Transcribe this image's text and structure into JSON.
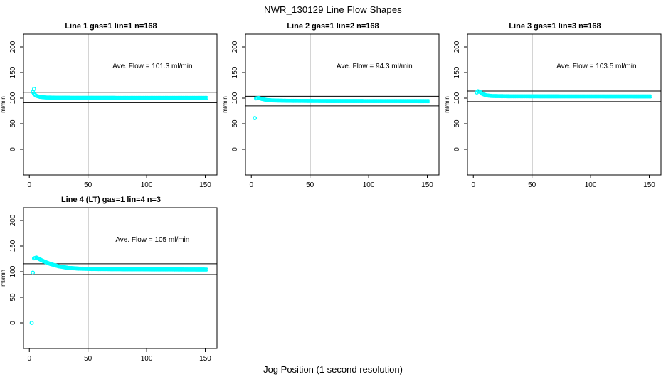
{
  "figure": {
    "title": "NWR_130129  Line Flow Shapes",
    "xlabel": "Jog Position (1 second resolution)",
    "background": "#FFFFFF",
    "point_color": "#00FFFF",
    "line_color": "#000000",
    "text_color": "#000000"
  },
  "chart_data": [
    {
      "type": "scatter",
      "title": "Line 1 gas=1 lin=1 n=168",
      "annotation": "Ave. Flow =  101.3  ml/min",
      "ave_flow_ml_min": 101.3,
      "gas": 1,
      "lin": 1,
      "n": 168,
      "ylabel": "ml/min",
      "xticks": [
        0,
        50,
        100,
        150
      ],
      "yticks": [
        0,
        50,
        100,
        150,
        200
      ],
      "xlim": [
        -5,
        160
      ],
      "ylim": [
        -50,
        225
      ],
      "vline_x": 50,
      "hlines_y": [
        111.4,
        91.2
      ],
      "annotation_pos": [
        105,
        158
      ],
      "trend": [
        [
          3,
          112
        ],
        [
          4,
          108
        ],
        [
          6,
          104.5
        ],
        [
          9,
          102.5
        ],
        [
          14,
          101.3
        ],
        [
          25,
          100.8
        ],
        [
          60,
          100.6
        ],
        [
          110,
          100.5
        ],
        [
          151,
          100.4
        ]
      ],
      "outliers": [
        [
          4,
          118
        ]
      ]
    },
    {
      "type": "scatter",
      "title": "Line 2 gas=1 lin=2 n=168",
      "annotation": "Ave. Flow =  94.3  ml/min",
      "ave_flow_ml_min": 94.3,
      "gas": 1,
      "lin": 2,
      "n": 168,
      "ylabel": "ml/min",
      "xticks": [
        0,
        50,
        100,
        150
      ],
      "yticks": [
        0,
        50,
        100,
        150,
        200
      ],
      "xlim": [
        -5,
        160
      ],
      "ylim": [
        -50,
        225
      ],
      "vline_x": 50,
      "hlines_y": [
        103.7,
        84.9
      ],
      "annotation_pos": [
        105,
        158
      ],
      "trend": [
        [
          4,
          99.5
        ],
        [
          6,
          100.5
        ],
        [
          9,
          98.5
        ],
        [
          13,
          96.5
        ],
        [
          18,
          95.5
        ],
        [
          30,
          94.8
        ],
        [
          60,
          94.4
        ],
        [
          151,
          94.2
        ]
      ],
      "outliers": [
        [
          3,
          61
        ]
      ]
    },
    {
      "type": "scatter",
      "title": "Line 3 gas=1 lin=3 n=168",
      "annotation": "Ave. Flow =  103.5  ml/min",
      "ave_flow_ml_min": 103.5,
      "gas": 1,
      "lin": 3,
      "n": 168,
      "ylabel": "ml/min",
      "xticks": [
        0,
        50,
        100,
        150
      ],
      "yticks": [
        0,
        50,
        100,
        150,
        200
      ],
      "xlim": [
        -5,
        160
      ],
      "ylim": [
        -50,
        225
      ],
      "vline_x": 50,
      "hlines_y": [
        113.9,
        93.2
      ],
      "annotation_pos": [
        105,
        158
      ],
      "trend": [
        [
          3,
          111
        ],
        [
          4,
          113.5
        ],
        [
          6,
          112
        ],
        [
          8,
          108
        ],
        [
          11,
          105.5
        ],
        [
          16,
          104.2
        ],
        [
          30,
          103.7
        ],
        [
          80,
          103.5
        ],
        [
          151,
          103.4
        ]
      ],
      "outliers": []
    },
    {
      "type": "scatter",
      "title": "Line 4 (LT) gas=1 lin=4 n=3",
      "annotation": "Ave. Flow =  105  ml/min",
      "ave_flow_ml_min": 105,
      "gas": 1,
      "lin": 4,
      "n": 3,
      "ylabel": "ml/min",
      "xticks": [
        0,
        50,
        100,
        150
      ],
      "yticks": [
        0,
        50,
        100,
        150,
        200
      ],
      "xlim": [
        -5,
        160
      ],
      "ylim": [
        -50,
        225
      ],
      "vline_x": 50,
      "hlines_y": [
        115.5,
        94.5
      ],
      "annotation_pos": [
        105,
        158
      ],
      "trend": [
        [
          4,
          126
        ],
        [
          6,
          127.5
        ],
        [
          9,
          124
        ],
        [
          13,
          119.5
        ],
        [
          18,
          115
        ],
        [
          25,
          110.5
        ],
        [
          33,
          107.5
        ],
        [
          42,
          106
        ],
        [
          55,
          105.2
        ],
        [
          80,
          104.8
        ],
        [
          120,
          104.5
        ],
        [
          151,
          104.2
        ]
      ],
      "outliers": [
        [
          2,
          0
        ],
        [
          3,
          98
        ]
      ]
    }
  ]
}
